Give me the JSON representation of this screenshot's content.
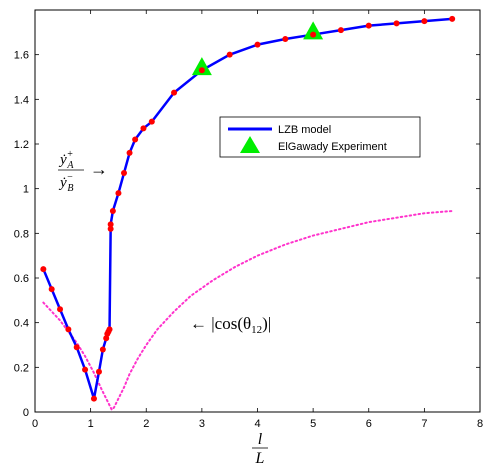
{
  "chart_data": {
    "type": "line",
    "xlabel_num": "l",
    "xlabel_den": "L",
    "xlim": [
      0,
      8
    ],
    "ylim": [
      0,
      1.8
    ],
    "xticks": [
      0,
      1,
      2,
      3,
      4,
      5,
      6,
      7,
      8
    ],
    "yticks": [
      0,
      0.2,
      0.4,
      0.6,
      0.8,
      1,
      1.2,
      1.4,
      1.6
    ],
    "grid": false,
    "legend_position": "center-right",
    "series": [
      {
        "name": "LZB model",
        "color": "#0000ff",
        "marker_color": "#ff0000",
        "x": [
          0.15,
          0.3,
          0.45,
          0.6,
          0.75,
          0.9,
          1.06,
          1.15,
          1.22,
          1.28,
          1.3,
          1.32,
          1.34,
          1.36,
          1.36,
          1.4,
          1.5,
          1.6,
          1.7,
          1.8,
          1.95,
          2.1,
          2.5,
          3.0,
          3.5,
          4.0,
          4.5,
          5.0,
          5.5,
          6.0,
          6.5,
          7.0,
          7.5
        ],
        "y": [
          0.64,
          0.55,
          0.46,
          0.37,
          0.29,
          0.19,
          0.06,
          0.18,
          0.28,
          0.33,
          0.35,
          0.36,
          0.37,
          0.82,
          0.84,
          0.9,
          0.98,
          1.07,
          1.16,
          1.22,
          1.27,
          1.3,
          1.43,
          1.53,
          1.6,
          1.645,
          1.67,
          1.69,
          1.71,
          1.73,
          1.74,
          1.75,
          1.76
        ]
      },
      {
        "name": "ElGawady Experiment",
        "color": "#00ee00",
        "marker": "triangle",
        "x": [
          3.0,
          5.0
        ],
        "y": [
          1.54,
          1.7
        ]
      }
    ],
    "reference_curve": {
      "color": "#ff33cc",
      "style": "dotted",
      "x": [
        0.15,
        0.3,
        0.45,
        0.6,
        0.75,
        0.9,
        1.05,
        1.2,
        1.3,
        1.38,
        1.42,
        1.5,
        1.6,
        1.7,
        1.85,
        2.0,
        2.2,
        2.5,
        2.8,
        3.2,
        3.6,
        4.0,
        4.5,
        5.0,
        5.5,
        6.0,
        6.5,
        7.0,
        7.5
      ],
      "y": [
        0.49,
        0.45,
        0.41,
        0.36,
        0.31,
        0.25,
        0.18,
        0.1,
        0.05,
        0.01,
        0.02,
        0.06,
        0.11,
        0.17,
        0.24,
        0.3,
        0.37,
        0.45,
        0.52,
        0.59,
        0.65,
        0.7,
        0.75,
        0.79,
        0.82,
        0.85,
        0.87,
        0.89,
        0.9
      ]
    },
    "annotations": [
      {
        "id": "ratio",
        "arrow": "→",
        "label_top": "ẏ",
        "sub_top": "A",
        "sup_top": "+",
        "label_bottom": "ẏ",
        "sub_bottom": "B",
        "sup_bottom": "−"
      },
      {
        "id": "cos",
        "text": "← |cos(θ",
        "sub": "12",
        "tail": ")|"
      }
    ]
  }
}
